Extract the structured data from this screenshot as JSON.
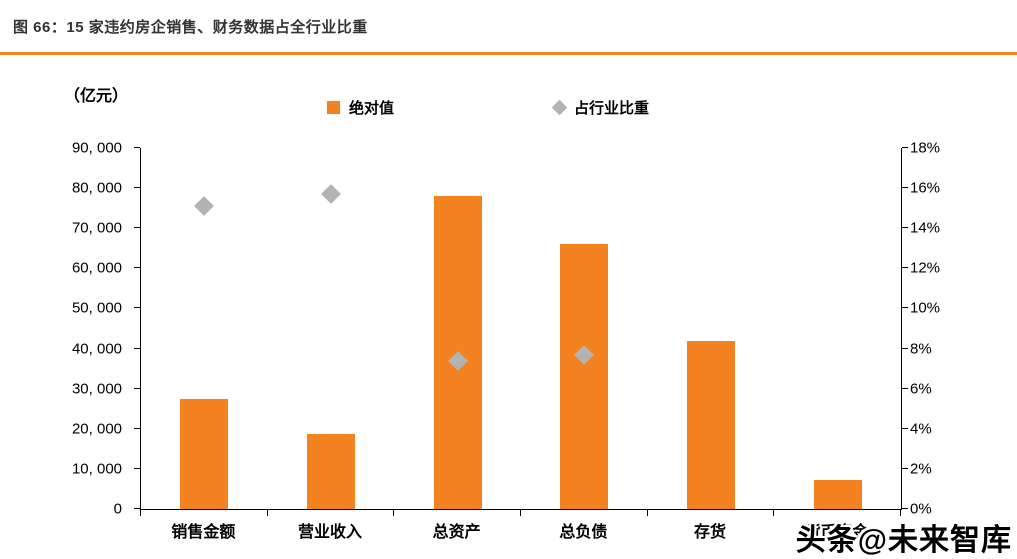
{
  "theme": {
    "accent": "#F58220",
    "marker_gray": "#B3B3B3"
  },
  "header": {
    "title": "图 66：15 家违约房企销售、财务数据占全行业比重"
  },
  "chart": {
    "unit_label": "（亿元）",
    "legend": [
      {
        "label": "绝对值",
        "marker": "square-icon",
        "color": "#F58220"
      },
      {
        "label": "占行业比重",
        "marker": "diamond-icon",
        "color": "#B3B3B3"
      }
    ]
  },
  "chart_data": {
    "type": "bar",
    "title": "15 家违约房企销售、财务数据占全行业比重",
    "categories": [
      "销售金额",
      "营业收入",
      "总资产",
      "总负债",
      "存货",
      "货币资金"
    ],
    "series": [
      {
        "name": "绝对值",
        "type": "bar",
        "axis": "left",
        "unit": "亿元",
        "values": [
          27500,
          18600,
          78000,
          66000,
          42000,
          7200
        ]
      },
      {
        "name": "占行业比重",
        "type": "scatter",
        "axis": "right",
        "unit": "%",
        "values": [
          15.1,
          15.7,
          7.4,
          7.7,
          null,
          null
        ]
      }
    ],
    "left_axis": {
      "label": "（亿元）",
      "min": 0,
      "max": 90000,
      "step": 10000,
      "tick_labels": [
        "0",
        "10, 000",
        "20, 000",
        "30, 000",
        "40, 000",
        "50, 000",
        "60, 000",
        "70, 000",
        "80, 000",
        "90, 000"
      ]
    },
    "right_axis": {
      "min": 0,
      "max": 18,
      "step": 2,
      "tick_labels": [
        "0%",
        "2%",
        "4%",
        "6%",
        "8%",
        "10%",
        "12%",
        "14%",
        "16%",
        "18%"
      ]
    },
    "grid": false,
    "legend_position": "top"
  },
  "watermark": {
    "text": "头条@未来智库"
  }
}
